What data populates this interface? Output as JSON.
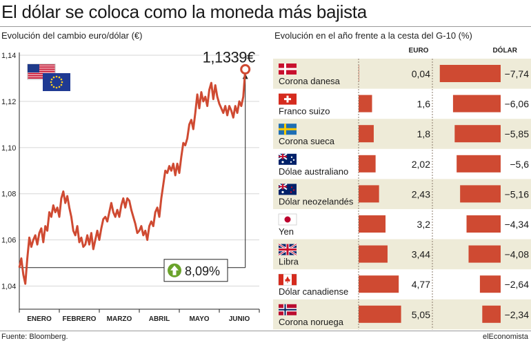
{
  "title": "El dólar se coloca como la moneda más bajista",
  "left_subtitle": "Evolución del cambio euro/dólar (€)",
  "right_subtitle": "Evolución en el año frente a la cesta del G-10 (%)",
  "source": "Fuente: Bloomberg.",
  "publisher": "elEconomista",
  "colors": {
    "accent": "#cf4a32",
    "band": "#eeebd8",
    "green": "#6aa32b"
  },
  "chart_data": [
    {
      "type": "line",
      "title": "Evolución del cambio euro/dólar (€)",
      "ylim": [
        1.03,
        1.14
      ],
      "yticks": [
        "1,04",
        "1,06",
        "1,08",
        "1,10",
        "1,12",
        "1,14"
      ],
      "ytick_values": [
        1.04,
        1.06,
        1.08,
        1.1,
        1.12,
        1.14
      ],
      "xlim": [
        0,
        6
      ],
      "month_labels": [
        "ENERO",
        "FEBRERO",
        "MARZO",
        "ABRIL",
        "MAYO",
        "JUNIO"
      ],
      "series": [
        {
          "values": [
            [
              0.0,
              1.048
            ],
            [
              0.05,
              1.052
            ],
            [
              0.1,
              1.045
            ],
            [
              0.15,
              1.041
            ],
            [
              0.2,
              1.052
            ],
            [
              0.25,
              1.061
            ],
            [
              0.3,
              1.057
            ],
            [
              0.35,
              1.06
            ],
            [
              0.4,
              1.062
            ],
            [
              0.45,
              1.058
            ],
            [
              0.5,
              1.063
            ],
            [
              0.55,
              1.065
            ],
            [
              0.6,
              1.059
            ],
            [
              0.65,
              1.066
            ],
            [
              0.7,
              1.064
            ],
            [
              0.75,
              1.072
            ],
            [
              0.8,
              1.07
            ],
            [
              0.85,
              1.075
            ],
            [
              0.9,
              1.072
            ],
            [
              0.95,
              1.074
            ],
            [
              1.0,
              1.07
            ],
            [
              1.05,
              1.078
            ],
            [
              1.1,
              1.081
            ],
            [
              1.15,
              1.076
            ],
            [
              1.2,
              1.079
            ],
            [
              1.25,
              1.074
            ],
            [
              1.3,
              1.07
            ],
            [
              1.35,
              1.064
            ],
            [
              1.4,
              1.062
            ],
            [
              1.45,
              1.066
            ],
            [
              1.5,
              1.059
            ],
            [
              1.55,
              1.061
            ],
            [
              1.6,
              1.057
            ],
            [
              1.65,
              1.058
            ],
            [
              1.7,
              1.062
            ],
            [
              1.75,
              1.058
            ],
            [
              1.8,
              1.063
            ],
            [
              1.85,
              1.056
            ],
            [
              1.9,
              1.06
            ],
            [
              1.95,
              1.064
            ],
            [
              2.0,
              1.06
            ],
            [
              2.05,
              1.065
            ],
            [
              2.1,
              1.069
            ],
            [
              2.15,
              1.07
            ],
            [
              2.2,
              1.068
            ],
            [
              2.25,
              1.072
            ],
            [
              2.3,
              1.076
            ],
            [
              2.35,
              1.072
            ],
            [
              2.4,
              1.07
            ],
            [
              2.45,
              1.073
            ],
            [
              2.5,
              1.07
            ],
            [
              2.55,
              1.075
            ],
            [
              2.6,
              1.078
            ],
            [
              2.65,
              1.074
            ],
            [
              2.7,
              1.078
            ],
            [
              2.75,
              1.077
            ],
            [
              2.8,
              1.073
            ],
            [
              2.85,
              1.07
            ],
            [
              2.9,
              1.067
            ],
            [
              2.95,
              1.063
            ],
            [
              3.0,
              1.064
            ],
            [
              3.05,
              1.066
            ],
            [
              3.1,
              1.062
            ],
            [
              3.15,
              1.064
            ],
            [
              3.2,
              1.06
            ],
            [
              3.25,
              1.066
            ],
            [
              3.3,
              1.068
            ],
            [
              3.35,
              1.066
            ],
            [
              3.4,
              1.072
            ],
            [
              3.45,
              1.074
            ],
            [
              3.5,
              1.07
            ],
            [
              3.55,
              1.078
            ],
            [
              3.6,
              1.084
            ],
            [
              3.65,
              1.09
            ],
            [
              3.7,
              1.089
            ],
            [
              3.75,
              1.092
            ],
            [
              3.8,
              1.09
            ],
            [
              3.85,
              1.093
            ],
            [
              3.9,
              1.088
            ],
            [
              3.95,
              1.093
            ],
            [
              4.0,
              1.089
            ],
            [
              4.05,
              1.096
            ],
            [
              4.1,
              1.102
            ],
            [
              4.15,
              1.101
            ],
            [
              4.2,
              1.104
            ],
            [
              4.25,
              1.11
            ],
            [
              4.3,
              1.112
            ],
            [
              4.35,
              1.108
            ],
            [
              4.4,
              1.115
            ],
            [
              4.45,
              1.123
            ],
            [
              4.5,
              1.117
            ],
            [
              4.55,
              1.124
            ],
            [
              4.6,
              1.12
            ],
            [
              4.65,
              1.122
            ],
            [
              4.7,
              1.118
            ],
            [
              4.75,
              1.125
            ],
            [
              4.8,
              1.128
            ],
            [
              4.85,
              1.121
            ],
            [
              4.9,
              1.127
            ],
            [
              4.95,
              1.122
            ],
            [
              5.0,
              1.119
            ],
            [
              5.05,
              1.117
            ],
            [
              5.1,
              1.115
            ],
            [
              5.15,
              1.118
            ],
            [
              5.2,
              1.114
            ],
            [
              5.25,
              1.118
            ],
            [
              5.3,
              1.116
            ],
            [
              5.35,
              1.113
            ],
            [
              5.4,
              1.118
            ],
            [
              5.45,
              1.115
            ],
            [
              5.5,
              1.12
            ],
            [
              5.55,
              1.118
            ],
            [
              5.6,
              1.122
            ],
            [
              5.65,
              1.1339
            ]
          ]
        }
      ],
      "annotations": {
        "last_value": "1,1339€",
        "change": "8,09%"
      }
    },
    {
      "type": "bar",
      "title": "Evolución en el año frente a la cesta del G-10 (%)",
      "column_headers": [
        "EURO",
        "DÓLAR"
      ],
      "categories": [
        "Corona danesa",
        "Franco suizo",
        "Corona sueca",
        "Dólae australiano",
        "Dólar neozelandés",
        "Yen",
        "Libra",
        "Dólar canadiense",
        "Corona noruega"
      ],
      "flags": [
        "denmark",
        "switzerland",
        "sweden",
        "australia",
        "new-zealand",
        "japan",
        "united-kingdom",
        "canada",
        "norway"
      ],
      "series": [
        {
          "name": "EURO",
          "values": [
            0.04,
            1.6,
            1.8,
            2.02,
            2.43,
            3.2,
            3.44,
            4.77,
            5.05
          ],
          "labels": [
            "0,04",
            "1,6",
            "1,8",
            "2,02",
            "2,43",
            "3,2",
            "3,44",
            "4,77",
            "5,05"
          ]
        },
        {
          "name": "DÓLAR",
          "values": [
            -7.74,
            -6.06,
            -5.85,
            -5.6,
            -5.16,
            -4.34,
            -4.08,
            -2.64,
            -2.34
          ],
          "labels": [
            "−7,74",
            "−6,06",
            "−5,85",
            "−5,6",
            "−5,16",
            "−4,34",
            "−4,08",
            "−2,64",
            "−2,34"
          ]
        }
      ]
    }
  ]
}
